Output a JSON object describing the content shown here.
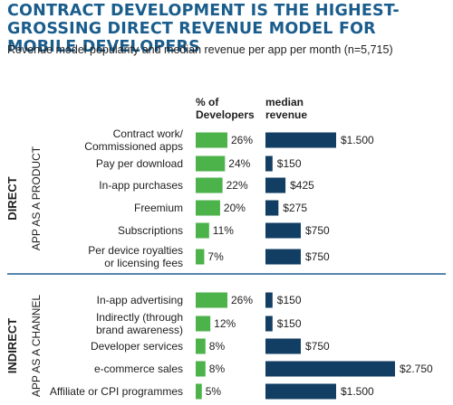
{
  "title": "CONTRACT DEVELOPMENT IS THE HIGHEST-GROSSING DIRECT REVENUE MODEL FOR MOBILE DEVELOPERS",
  "subtitle": "Revenue model popularity and median revenue per app per month (n=5,715)",
  "chart_data": {
    "type": "bar",
    "column_headers": {
      "developers": [
        "% of",
        "Developers"
      ],
      "revenue": [
        "median",
        "revenue"
      ]
    },
    "groups": [
      {
        "title": "DIRECT",
        "subtitle": "APP AS A PRODUCT",
        "start": 0,
        "end": 5
      },
      {
        "title": "INDIRECT",
        "subtitle": "APP AS A CHANNEL",
        "start": 6,
        "end": 10
      }
    ],
    "categories": [
      [
        "Contract work/",
        "Commissioned apps"
      ],
      [
        "Pay per download"
      ],
      [
        "In-app purchases"
      ],
      [
        "Freemium"
      ],
      [
        "Subscriptions"
      ],
      [
        "Per device royalties",
        "or licensing fees"
      ],
      [
        "In-app advertising"
      ],
      [
        "Indirectly (through",
        "brand awareness)"
      ],
      [
        "Developer services"
      ],
      [
        "e-commerce sales"
      ],
      [
        "Affiliate or CPI programmes"
      ]
    ],
    "series": [
      {
        "name": "% of Developers",
        "values": [
          26,
          24,
          22,
          20,
          11,
          7,
          26,
          12,
          8,
          8,
          5
        ],
        "labels": [
          "26%",
          "24%",
          "22%",
          "20%",
          "11%",
          "7%",
          "26%",
          "12%",
          "8%",
          "8%",
          "5%"
        ],
        "color": "#4cb24a"
      },
      {
        "name": "median revenue",
        "values": [
          1500,
          150,
          425,
          275,
          750,
          750,
          150,
          150,
          750,
          2750,
          1500
        ],
        "labels": [
          "$1.500",
          "$150",
          "$425",
          "$275",
          "$750",
          "$750",
          "$150",
          "$150",
          "$750",
          "$2.750",
          "$1.500"
        ],
        "color": "#123e63"
      }
    ],
    "colors": {
      "title": "#1a5d8c",
      "divider": "#1a5d8c"
    }
  }
}
